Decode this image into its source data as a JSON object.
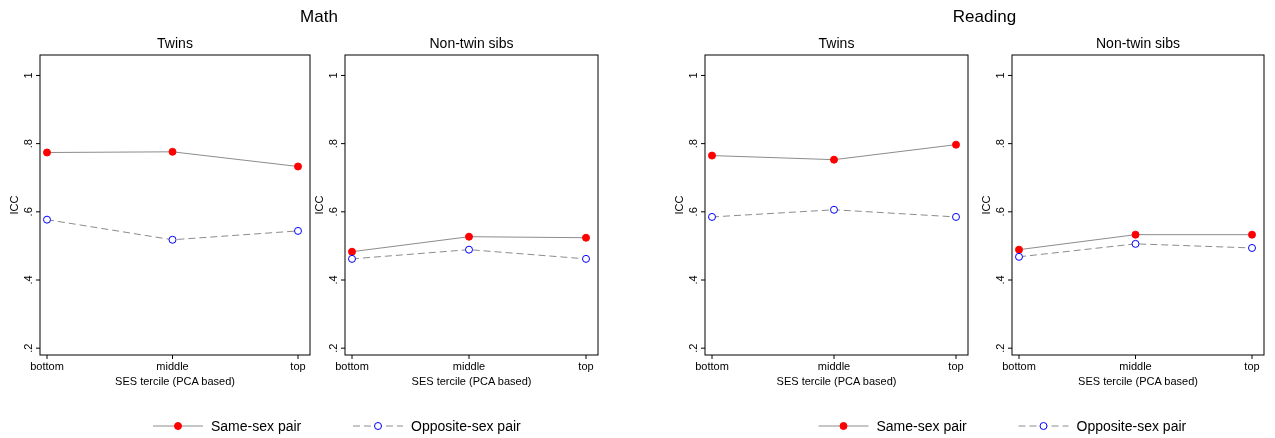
{
  "chart_data": [
    {
      "type": "line",
      "title": "Math",
      "subtitle": "Twins",
      "xlabel": "SES tercile (PCA based)",
      "ylabel": "ICC",
      "categories": [
        "bottom",
        "middle",
        "top"
      ],
      "ylim": [
        0.18,
        1.06
      ],
      "yticks": [
        {
          "value": 0.2,
          "label": ".2"
        },
        {
          "value": 0.4,
          "label": ".4"
        },
        {
          "value": 0.6,
          "label": ".6"
        },
        {
          "value": 0.8,
          "label": ".8"
        },
        {
          "value": 1,
          "label": "1"
        }
      ],
      "marker": "circle",
      "legend": "bottom",
      "series": [
        {
          "name": "Same-sex pair",
          "color": "#ff0000",
          "line_style": "solid",
          "values": [
            0.774,
            0.776,
            0.733
          ]
        },
        {
          "name": "Opposite-sex pair",
          "color": "#0000ff",
          "line_style": "dashed",
          "values": [
            0.577,
            0.518,
            0.544
          ]
        }
      ]
    },
    {
      "type": "line",
      "subtitle": "Non-twin sibs",
      "xlabel": "SES tercile (PCA based)",
      "ylabel": "ICC",
      "categories": [
        "bottom",
        "middle",
        "top"
      ],
      "ylim": [
        0.18,
        1.06
      ],
      "yticks": [
        {
          "value": 0.2,
          "label": ".2"
        },
        {
          "value": 0.4,
          "label": ".4"
        },
        {
          "value": 0.6,
          "label": ".6"
        },
        {
          "value": 0.8,
          "label": ".8"
        },
        {
          "value": 1,
          "label": "1"
        }
      ],
      "marker": "circle",
      "series": [
        {
          "color": "#ff0000",
          "line_style": "solid",
          "values": [
            0.483,
            0.527,
            0.524
          ]
        },
        {
          "color": "#0000ff",
          "line_style": "dashed",
          "values": [
            0.462,
            0.489,
            0.462
          ]
        }
      ]
    },
    {
      "type": "line",
      "title": "Reading",
      "subtitle": "Twins",
      "xlabel": "SES tercile (PCA based)",
      "ylabel": "ICC",
      "categories": [
        "bottom",
        "middle",
        "top"
      ],
      "ylim": [
        0.18,
        1.06
      ],
      "yticks": [
        {
          "value": 0.2,
          "label": ".2"
        },
        {
          "value": 0.4,
          "label": ".4"
        },
        {
          "value": 0.6,
          "label": ".6"
        },
        {
          "value": 0.8,
          "label": ".8"
        },
        {
          "value": 1,
          "label": "1"
        }
      ],
      "marker": "circle",
      "legend": "bottom",
      "series": [
        {
          "name": "Same-sex pair",
          "color": "#ff0000",
          "line_style": "solid",
          "values": [
            0.765,
            0.753,
            0.797
          ]
        },
        {
          "name": "Opposite-sex pair",
          "color": "#0000ff",
          "line_style": "dashed",
          "values": [
            0.585,
            0.606,
            0.585
          ]
        }
      ]
    },
    {
      "type": "line",
      "subtitle": "Non-twin sibs",
      "xlabel": "SES tercile (PCA based)",
      "ylabel": "ICC",
      "categories": [
        "bottom",
        "middle",
        "top"
      ],
      "ylim": [
        0.18,
        1.06
      ],
      "yticks": [
        {
          "value": 0.2,
          "label": ".2"
        },
        {
          "value": 0.4,
          "label": ".4"
        },
        {
          "value": 0.6,
          "label": ".6"
        },
        {
          "value": 0.8,
          "label": ".8"
        },
        {
          "value": 1,
          "label": "1"
        }
      ],
      "marker": "circle",
      "series": [
        {
          "color": "#ff0000",
          "line_style": "solid",
          "values": [
            0.489,
            0.533,
            0.533
          ]
        },
        {
          "color": "#0000ff",
          "line_style": "dashed",
          "values": [
            0.468,
            0.506,
            0.494
          ]
        }
      ]
    }
  ]
}
